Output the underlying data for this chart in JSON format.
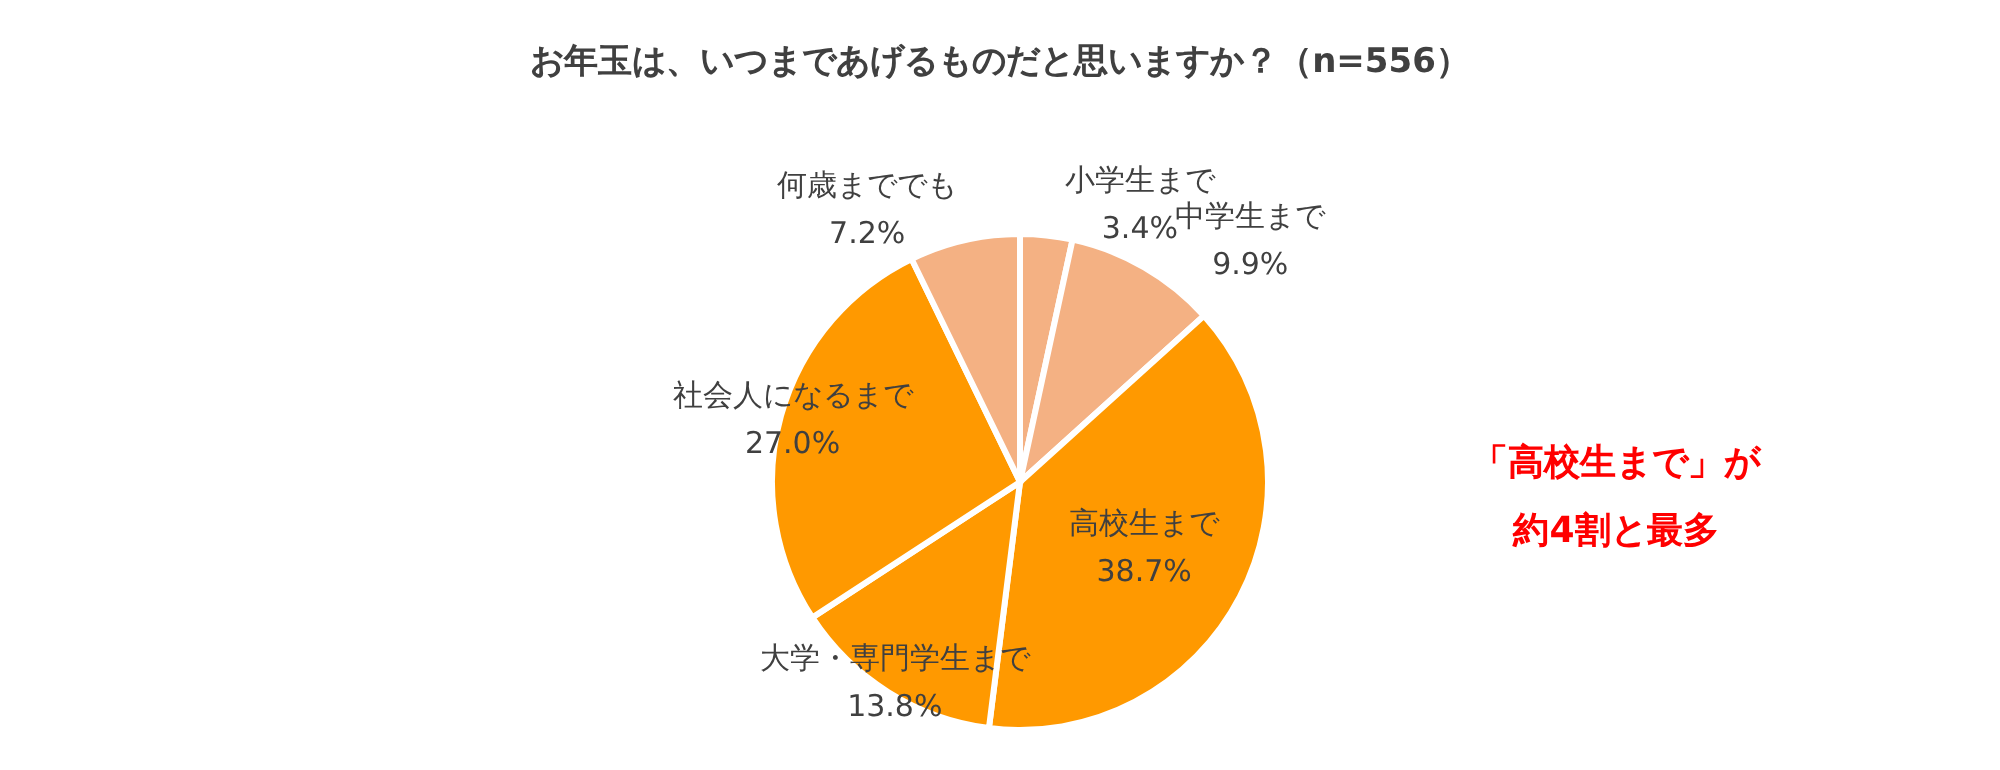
{
  "chart_data": {
    "type": "pie",
    "title": "お年玉は、いつまであげるものだと思いますか？（n=556）",
    "categories": [
      "小学生まで",
      "中学生まで",
      "高校生まで",
      "大学・専門学生まで",
      "社会人になるまで",
      "何歳まででも"
    ],
    "values": [
      3.4,
      9.9,
      38.7,
      13.8,
      27.0,
      7.2
    ],
    "value_labels": [
      "3.4%",
      "9.9%",
      "38.7%",
      "13.8%",
      "27.0%",
      "7.2%"
    ],
    "colors": [
      "#f4b183",
      "#f4b183",
      "#ff9900",
      "#ff9900",
      "#ff9900",
      "#f4b183"
    ],
    "annotations": [
      "「高校生まで」が",
      "約4割と最多"
    ]
  }
}
